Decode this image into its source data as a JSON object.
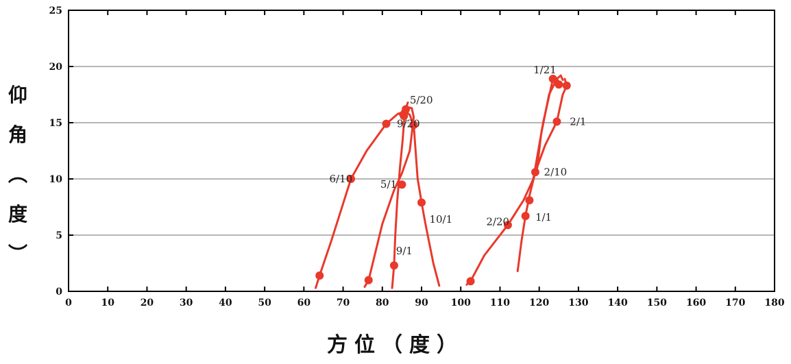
{
  "chart_data": {
    "type": "line",
    "xlabel": "方位（度）",
    "ylabel": [
      "仰",
      "角",
      "︵",
      "度",
      "︶"
    ],
    "xlim": [
      0,
      180
    ],
    "ylim": [
      0,
      25
    ],
    "x_ticks": [
      "0",
      "10",
      "20",
      "30",
      "40",
      "50",
      "60",
      "70",
      "80",
      "90",
      "100",
      "110",
      "120",
      "130",
      "140",
      "150",
      "160",
      "170",
      "180"
    ],
    "y_ticks": [
      "0",
      "5",
      "10",
      "15",
      "20",
      "25"
    ],
    "grid": "horizontal",
    "line_color": "#e8392b",
    "series": [
      {
        "x": [
          63,
          64,
          67,
          72,
          76,
          81,
          84,
          86,
          87,
          88,
          89,
          89.5,
          90,
          91,
          93,
          94.5
        ],
        "y": [
          0.3,
          1.4,
          4.5,
          10,
          12.5,
          14.9,
          15.8,
          16.0,
          15.7,
          14.8,
          10,
          9,
          7.9,
          6,
          2.5,
          0.5
        ]
      },
      {
        "x": [
          75.5,
          76.5,
          80,
          83,
          85,
          87,
          88,
          87.5,
          86,
          85,
          84.5
        ],
        "y": [
          0.4,
          1.0,
          6,
          9,
          10.5,
          12.5,
          15.5,
          16.3,
          16.4,
          16.0,
          15.7
        ]
      },
      {
        "x": [
          82.5,
          83,
          83.3,
          83.8,
          84.5,
          85.2,
          85.5,
          86,
          86.5
        ],
        "y": [
          0.3,
          2.3,
          5,
          8,
          11,
          13.5,
          15,
          16.3,
          16.8
        ]
      },
      {
        "x": [
          101.5,
          102.5,
          106,
          112,
          116,
          118.5,
          119.5,
          121,
          123.5,
          124.5,
          125.2
        ],
        "y": [
          0.6,
          0.9,
          3.2,
          5.9,
          8.1,
          10.0,
          12,
          15,
          18.9,
          18.9,
          18.5
        ]
      },
      {
        "x": [
          114.5,
          115.5,
          116.5,
          117.5,
          119,
          121.5,
          124.5,
          126,
          127,
          126.5
        ],
        "y": [
          1.8,
          4.5,
          6.7,
          8.5,
          10.6,
          13,
          15.1,
          17.5,
          18.3,
          18.9
        ]
      },
      {
        "x": [
          118,
          119.5,
          120.5,
          122.5,
          124.5,
          125.5,
          126
        ],
        "y": [
          9.5,
          11,
          14,
          17.5,
          18.9,
          19.2,
          18.8
        ]
      }
    ],
    "markers": [
      {
        "x": 64,
        "y": 1.4
      },
      {
        "x": 76.5,
        "y": 1.0
      },
      {
        "x": 83,
        "y": 2.3
      },
      {
        "x": 72,
        "y": 10.0
      },
      {
        "x": 81,
        "y": 14.9
      },
      {
        "x": 85,
        "y": 9.5
      },
      {
        "x": 90,
        "y": 7.9
      },
      {
        "x": 85.5,
        "y": 15.6
      },
      {
        "x": 86,
        "y": 16.2
      },
      {
        "x": 88,
        "y": 14.8
      },
      {
        "x": 102.5,
        "y": 0.9
      },
      {
        "x": 112,
        "y": 5.9
      },
      {
        "x": 116.5,
        "y": 6.7
      },
      {
        "x": 117.5,
        "y": 8.1
      },
      {
        "x": 119,
        "y": 10.6
      },
      {
        "x": 124.5,
        "y": 15.1
      },
      {
        "x": 123.5,
        "y": 18.9
      },
      {
        "x": 125,
        "y": 18.4
      },
      {
        "x": 127,
        "y": 18.3
      }
    ],
    "annotations": [
      {
        "text": "5/20",
        "x": 87,
        "y": 17.0
      },
      {
        "text": "9/20",
        "x": 83.7,
        "y": 14.9
      },
      {
        "text": "6/10",
        "x": 66.5,
        "y": 10.0
      },
      {
        "text": "5/1",
        "x": 79.5,
        "y": 9.5
      },
      {
        "text": "10/1",
        "x": 92,
        "y": 6.4
      },
      {
        "text": "9/1",
        "x": 83.5,
        "y": 3.6
      },
      {
        "text": "1/21",
        "x": 118.5,
        "y": 19.7
      },
      {
        "text": "2/1",
        "x": 127.8,
        "y": 15.1
      },
      {
        "text": "2/10",
        "x": 121.2,
        "y": 10.6
      },
      {
        "text": "2/20",
        "x": 106.5,
        "y": 6.2
      },
      {
        "text": "1/1",
        "x": 119,
        "y": 6.6
      }
    ]
  }
}
